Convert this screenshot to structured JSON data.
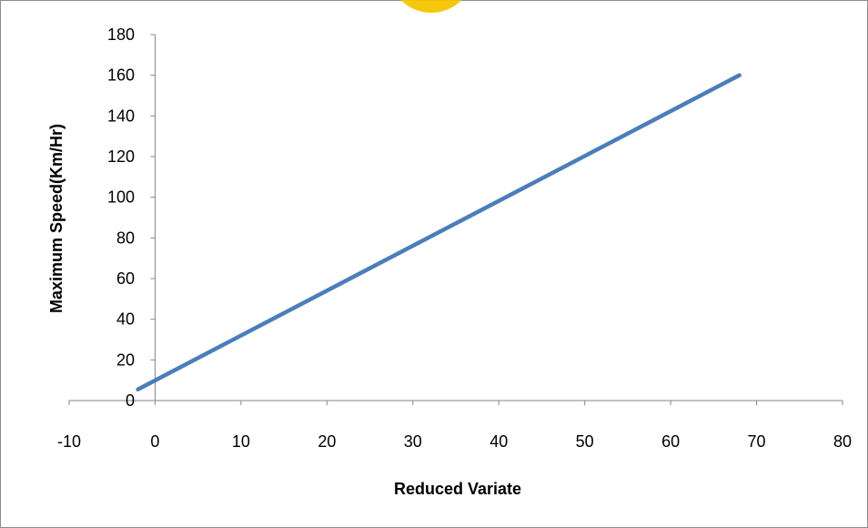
{
  "chart_data": {
    "type": "line",
    "title": "",
    "xlabel": "Reduced Variate",
    "ylabel": "Maximum Speed(Km/Hr)",
    "xlim": [
      -10,
      80
    ],
    "ylim": [
      0,
      180
    ],
    "x_ticks": [
      -10,
      0,
      10,
      20,
      30,
      40,
      50,
      60,
      70,
      80
    ],
    "y_ticks": [
      0,
      20,
      40,
      60,
      80,
      100,
      120,
      140,
      160,
      180
    ],
    "grid": false,
    "legend": "none",
    "series": [
      {
        "color": "#4a7ebb",
        "x": [
          -2,
          68
        ],
        "y": [
          5.5,
          160
        ]
      }
    ]
  },
  "colors": {
    "line": "#4a7ebb",
    "axis": "#868686",
    "frame": "#8c8c8c",
    "watermark": "#f5c400"
  }
}
